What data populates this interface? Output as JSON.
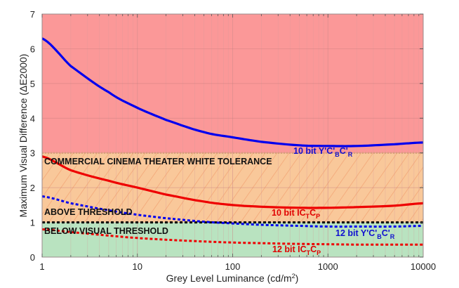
{
  "chart_data": {
    "type": "line",
    "title": "",
    "xlabel": "Grey Level Luminance (cd/m²)",
    "ylabel": "Maximum Visual Difference (ΔE2000)",
    "xscale": "log",
    "xlim": [
      1,
      10000
    ],
    "ylim": [
      0,
      7
    ],
    "x_ticks": [
      "1",
      "10",
      "100",
      "1000",
      "10000"
    ],
    "y_ticks": [
      "0",
      "1",
      "2",
      "3",
      "4",
      "5",
      "6",
      "7"
    ],
    "grid": true,
    "regions": [
      {
        "name": "Commercial Cinema Theater White Tolerance",
        "y_range": [
          1,
          3
        ],
        "color": "#f9c89a",
        "hatched": true,
        "label": "COMMERCIAL CINEMA THEATER WHITE TOLERANCE"
      },
      {
        "name": "Above Threshold",
        "y_range": [
          3,
          7
        ],
        "color": "#fb9898",
        "label": ""
      },
      {
        "name": "Below Visual Threshold",
        "y_range": [
          0,
          1
        ],
        "color": "#b9e3c0",
        "label": "BELOW VISUAL THRESHOLD"
      }
    ],
    "annotations": [
      "COMMERCIAL CINEMA THEATER WHITE TOLERANCE",
      "ABOVE THRESHOLD",
      "BELOW VISUAL THRESHOLD"
    ],
    "reference_lines": [
      {
        "y": 1,
        "style": "dotted",
        "color": "#000000"
      },
      {
        "y": 3,
        "style": "dotted",
        "color": "#d8a07a"
      }
    ],
    "x": [
      1,
      2,
      5,
      10,
      20,
      50,
      100,
      200,
      500,
      1000,
      2000,
      5000,
      10000
    ],
    "series": [
      {
        "name": "10 bit Y'C'BC'R",
        "color": "#0000ee",
        "style": "solid",
        "values": [
          6.3,
          5.5,
          4.75,
          4.3,
          3.95,
          3.6,
          3.45,
          3.32,
          3.22,
          3.2,
          3.2,
          3.25,
          3.3
        ]
      },
      {
        "name": "10 bit ICTCP",
        "color": "#ee0000",
        "style": "solid",
        "values": [
          2.9,
          2.5,
          2.2,
          2.0,
          1.8,
          1.6,
          1.5,
          1.45,
          1.42,
          1.42,
          1.44,
          1.48,
          1.55
        ]
      },
      {
        "name": "12 bit Y'C'BC'R",
        "color": "#0000ee",
        "style": "dotted",
        "values": [
          1.75,
          1.55,
          1.35,
          1.22,
          1.12,
          1.02,
          0.97,
          0.93,
          0.9,
          0.88,
          0.88,
          0.88,
          0.9
        ]
      },
      {
        "name": "12 bit ICTCP",
        "color": "#ee0000",
        "style": "dotted",
        "values": [
          0.8,
          0.72,
          0.62,
          0.55,
          0.5,
          0.45,
          0.42,
          0.4,
          0.38,
          0.37,
          0.36,
          0.36,
          0.36
        ]
      }
    ],
    "series_labels": [
      {
        "main": "10 bit Y'C'",
        "sub1": "B",
        "mid": "C'",
        "sub2": "R"
      },
      {
        "main": "10 bit IC",
        "sub1": "T",
        "mid": "C",
        "sub2": "P"
      },
      {
        "main": "12 bit Y'C'",
        "sub1": "B",
        "mid": "C'",
        "sub2": "R"
      },
      {
        "main": "12 bit IC",
        "sub1": "T",
        "mid": "C",
        "sub2": "P"
      }
    ]
  },
  "axes": {
    "xlabel_main": "Grey Level Luminance (cd/m",
    "xlabel_sup": "2",
    "xlabel_end": ")",
    "ylabel": "Maximum Visual Difference (ΔE2000)"
  }
}
